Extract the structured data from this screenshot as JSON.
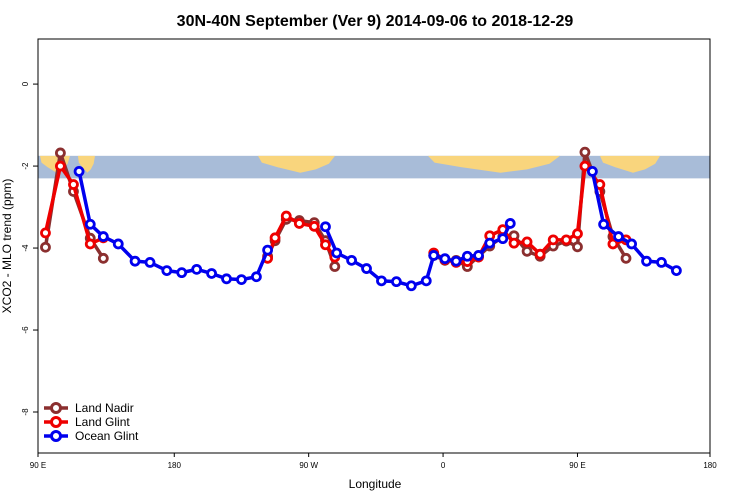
{
  "chart_data": {
    "type": "line",
    "title": "30N-40N September (Ver 9)   2014-09-06 to 2018-12-29",
    "xlabel": "Longitude",
    "ylabel": "XCO2 - MLO trend (ppm)",
    "xlim": [
      -90,
      270
    ],
    "ylim": [
      -9,
      1.1
    ],
    "x_ticks": [
      {
        "value": -90,
        "label": "90 E"
      },
      {
        "value": -17,
        "label": "180"
      },
      {
        "value": 55,
        "label": "90 W"
      },
      {
        "value": 127,
        "label": "0"
      },
      {
        "value": 199,
        "label": "90 E"
      },
      {
        "value": 270,
        "label": "180"
      }
    ],
    "y_ticks": [
      0,
      -2,
      -4,
      -6,
      -8
    ],
    "map_strip": {
      "y_top": -1.75,
      "y_bottom": -2.3,
      "ocean_color": "#a8bcd8",
      "land_color": "#f9d57d"
    },
    "legend": {
      "position": "bottom-left"
    },
    "series": [
      {
        "name": "Land Nadir",
        "color": "#8b2f2f",
        "points": [
          [
            -86,
            -3.98
          ],
          [
            -78,
            -1.68
          ],
          [
            -71,
            -2.62
          ],
          [
            -62,
            -3.76
          ],
          [
            -55,
            -4.25
          ],
          [
            33,
            -4.2
          ],
          [
            37,
            -3.82
          ],
          [
            43,
            -3.3
          ],
          [
            50,
            -3.33
          ],
          [
            58,
            -3.38
          ],
          [
            64,
            -3.82
          ],
          [
            69,
            -4.45
          ],
          [
            122,
            -4.18
          ],
          [
            128,
            -4.3
          ],
          [
            134,
            -4.3
          ],
          [
            140,
            -4.45
          ],
          [
            146,
            -4.2
          ],
          [
            152,
            -3.95
          ],
          [
            159,
            -3.72
          ],
          [
            165,
            -3.7
          ],
          [
            172,
            -4.08
          ],
          [
            179,
            -4.2
          ],
          [
            186,
            -3.95
          ],
          [
            193,
            -3.83
          ],
          [
            199,
            -3.97
          ],
          [
            203,
            -1.66
          ],
          [
            211,
            -2.62
          ],
          [
            218,
            -3.72
          ],
          [
            225,
            -4.25
          ]
        ]
      },
      {
        "name": "Land Glint",
        "color": "#ee0000",
        "points": [
          [
            -86,
            -3.63
          ],
          [
            -78,
            -2.0
          ],
          [
            -71,
            -2.45
          ],
          [
            -62,
            -3.9
          ],
          [
            -55,
            -3.75
          ],
          [
            33,
            -4.25
          ],
          [
            37,
            -3.75
          ],
          [
            43,
            -3.22
          ],
          [
            50,
            -3.4
          ],
          [
            58,
            -3.47
          ],
          [
            64,
            -3.92
          ],
          [
            69,
            -4.22
          ],
          [
            122,
            -4.12
          ],
          [
            128,
            -4.28
          ],
          [
            134,
            -4.35
          ],
          [
            140,
            -4.33
          ],
          [
            146,
            -4.22
          ],
          [
            152,
            -3.7
          ],
          [
            159,
            -3.55
          ],
          [
            165,
            -3.88
          ],
          [
            172,
            -3.85
          ],
          [
            179,
            -4.15
          ],
          [
            186,
            -3.8
          ],
          [
            193,
            -3.8
          ],
          [
            199,
            -3.65
          ],
          [
            203,
            -2.0
          ],
          [
            211,
            -2.45
          ],
          [
            218,
            -3.9
          ],
          [
            225,
            -3.8
          ]
        ]
      },
      {
        "name": "Ocean Glint",
        "color": "#0000ee",
        "points": [
          [
            -68,
            -2.13
          ],
          [
            -62,
            -3.42
          ],
          [
            -55,
            -3.72
          ],
          [
            -47,
            -3.9
          ],
          [
            -38,
            -4.32
          ],
          [
            -30,
            -4.35
          ],
          [
            -21,
            -4.55
          ],
          [
            -13,
            -4.6
          ],
          [
            -5,
            -4.52
          ],
          [
            3,
            -4.62
          ],
          [
            11,
            -4.75
          ],
          [
            19,
            -4.77
          ],
          [
            27,
            -4.7
          ],
          [
            33,
            -4.05
          ],
          [
            64,
            -3.48
          ],
          [
            70,
            -4.12
          ],
          [
            78,
            -4.3
          ],
          [
            86,
            -4.5
          ],
          [
            94,
            -4.8
          ],
          [
            102,
            -4.82
          ],
          [
            110,
            -4.92
          ],
          [
            118,
            -4.8
          ],
          [
            122,
            -4.18
          ],
          [
            128,
            -4.26
          ],
          [
            134,
            -4.32
          ],
          [
            140,
            -4.2
          ],
          [
            146,
            -4.18
          ],
          [
            152,
            -3.88
          ],
          [
            159,
            -3.77
          ],
          [
            163,
            -3.4
          ],
          [
            207,
            -2.13
          ],
          [
            213,
            -3.42
          ],
          [
            221,
            -3.72
          ],
          [
            228,
            -3.9
          ],
          [
            236,
            -4.32
          ],
          [
            244,
            -4.35
          ],
          [
            252,
            -4.55
          ]
        ]
      }
    ]
  }
}
